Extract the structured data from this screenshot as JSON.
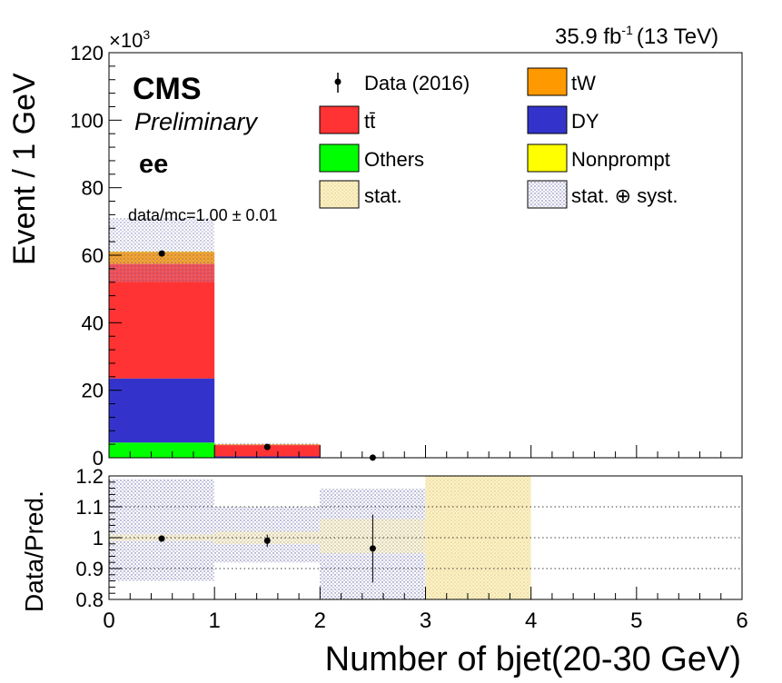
{
  "header": {
    "lumi": "35.9 fb",
    "lumi_exp": "-1",
    "energy": "(13 TeV)",
    "cms": "CMS",
    "preliminary": "Preliminary",
    "channel": "ee",
    "ratio_text": "data/mc=1.00 ± 0.01",
    "exponent_base": "×10",
    "exponent_power": "3"
  },
  "colors": {
    "ttbar": "#ff3333",
    "tW": "#ff9900",
    "DY": "#3333cc",
    "Others": "#00ff00",
    "Nonprompt": "#ffff00",
    "stat_band": "#f0e0a0",
    "syst_band": "#9090c0"
  },
  "chart_data": [
    {
      "type": "bar",
      "stacked": true,
      "title": "",
      "xlabel": "Number of bjet(20-30 GeV)",
      "ylabel": "Event / 1 GeV",
      "xlim": [
        0,
        6
      ],
      "ylim": [
        0,
        120
      ],
      "y_scale_note": "×10³",
      "x_ticks": [
        "0",
        "1",
        "2",
        "3",
        "4",
        "5",
        "6"
      ],
      "y_ticks": [
        "0",
        "20",
        "40",
        "60",
        "80",
        "100",
        "120"
      ],
      "bins": [
        [
          0,
          1
        ],
        [
          1,
          2
        ],
        [
          2,
          3
        ],
        [
          3,
          4
        ]
      ],
      "series": [
        {
          "name": "Others",
          "values": [
            4.5,
            0.1,
            0.0,
            0.0
          ]
        },
        {
          "name": "DY",
          "values": [
            19.0,
            0.3,
            0.0,
            0.0
          ]
        },
        {
          "name": "tt̄",
          "values": [
            34.0,
            3.4,
            0.1,
            0.0
          ]
        },
        {
          "name": "tW",
          "values": [
            3.5,
            0.2,
            0.0,
            0.0
          ]
        },
        {
          "name": "Nonprompt",
          "values": [
            0.1,
            0.0,
            0.0,
            0.0
          ]
        }
      ],
      "data_points": {
        "name": "Data (2016)",
        "x": [
          0.5,
          1.5,
          2.5
        ],
        "y": [
          60.5,
          3.2,
          0.05
        ]
      },
      "stat_syst_band": {
        "low": [
          52,
          3.6,
          0.05,
          0
        ],
        "high": [
          71,
          4.4,
          0.15,
          0
        ]
      },
      "legend": [
        "Data (2016)",
        "tW",
        "tt̄",
        "DY",
        "Others",
        "Nonprompt",
        "stat.",
        "stat. ⊕ syst."
      ],
      "legend_position": "top"
    },
    {
      "type": "scatter",
      "title": "",
      "xlabel": "Number of bjet(20-30 GeV)",
      "ylabel": "Data/Pred.",
      "xlim": [
        0,
        6
      ],
      "ylim": [
        0.8,
        1.2
      ],
      "y_ticks": [
        "0.8",
        "0.9",
        "1",
        "1.1",
        "1.2"
      ],
      "grid": "horizontal dotted at 0.9, 1.0, 1.1",
      "points": {
        "x": [
          0.5,
          1.5,
          2.5
        ],
        "y": [
          0.997,
          0.99,
          0.965
        ],
        "err": [
          0.005,
          0.02,
          0.11
        ]
      },
      "stat_band": {
        "low": [
          0.99,
          0.98,
          0.95,
          0.8
        ],
        "high": [
          1.01,
          1.02,
          1.06,
          1.2
        ]
      },
      "syst_band": {
        "low": [
          0.86,
          0.92,
          0.8,
          0.8
        ],
        "high": [
          1.19,
          1.1,
          1.16,
          1.2
        ]
      }
    }
  ]
}
